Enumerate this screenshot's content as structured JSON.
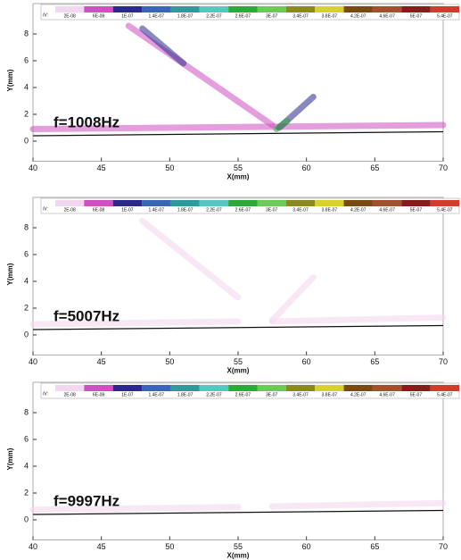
{
  "chart_data": [
    {
      "type": "contour",
      "annotation": "f=1008Hz",
      "xlabel": "X(mm)",
      "ylabel": "Y(mm)",
      "xlim": [
        40,
        70
      ],
      "ylim": [
        -1.5,
        10
      ],
      "xticks": [
        40,
        45,
        50,
        55,
        60,
        65,
        70
      ],
      "yticks": [
        0,
        2,
        4,
        6,
        8
      ],
      "colorbar": {
        "label": "/V:",
        "levels": [
          {
            "value": 2e-08,
            "label": "2E-08"
          },
          {
            "value": 6e-08,
            "label": "6E-08"
          },
          {
            "value": 1e-07,
            "label": "1E-07"
          },
          {
            "value": 1.4e-07,
            "label": "1.4E-07"
          },
          {
            "value": 1.8e-07,
            "label": "1.8E-07"
          },
          {
            "value": 2.2e-07,
            "label": "2.2E-07"
          },
          {
            "value": 2.6e-07,
            "label": "2.6E-07"
          },
          {
            "value": 3e-07,
            "label": "3E-07"
          },
          {
            "value": 3.4e-07,
            "label": "3.4E-07"
          },
          {
            "value": 3.8e-07,
            "label": "3.8E-07"
          },
          {
            "value": 4.2e-07,
            "label": "4.2E-07"
          },
          {
            "value": 4.6e-07,
            "label": "4.6E-07"
          },
          {
            "value": 5e-07,
            "label": "5E-07"
          },
          {
            "value": 5.4e-07,
            "label": "5.4E-07"
          }
        ],
        "colors": [
          "#f3d6ef",
          "#d14fc2",
          "#2b2a8c",
          "#3a66b3",
          "#2a9c9c",
          "#57c7c0",
          "#2fa83a",
          "#6cc95a",
          "#8c8a1e",
          "#d6d22a",
          "#7a4a12",
          "#a0522d",
          "#8b1a1a",
          "#d63a2a"
        ]
      },
      "wall": {
        "x": [
          40,
          70
        ],
        "y": [
          0.4,
          0.7
        ]
      },
      "streaks": [
        {
          "x": [
            40,
            70
          ],
          "y": [
            0.9,
            1.2
          ],
          "level": 6e-08
        },
        {
          "x": [
            47,
            57.5
          ],
          "y": [
            8.6,
            1.2
          ],
          "level": 6e-08
        },
        {
          "x": [
            48,
            51
          ],
          "y": [
            8.4,
            5.8
          ],
          "level": 1e-07
        },
        {
          "x": [
            58,
            60.5
          ],
          "y": [
            1,
            3.3
          ],
          "level": 1e-07
        },
        {
          "x": [
            57.8,
            58.6
          ],
          "y": [
            0.9,
            1.5
          ],
          "level": 2.6e-07
        }
      ]
    },
    {
      "type": "contour",
      "annotation": "f=5007Hz",
      "xlabel": "X(mm)",
      "ylabel": "Y(mm)",
      "xlim": [
        40,
        70
      ],
      "ylim": [
        -1.5,
        10
      ],
      "xticks": [
        40,
        45,
        50,
        55,
        60,
        65,
        70
      ],
      "yticks": [
        0,
        2,
        4,
        6,
        8
      ],
      "colorbar": {
        "label": "/V:",
        "levels": [
          {
            "value": 2e-08,
            "label": "2E-08"
          },
          {
            "value": 6e-08,
            "label": "6E-08"
          },
          {
            "value": 1e-07,
            "label": "1E-07"
          },
          {
            "value": 1.4e-07,
            "label": "1.4E-07"
          },
          {
            "value": 1.8e-07,
            "label": "1.8E-07"
          },
          {
            "value": 2.2e-07,
            "label": "2.2E-07"
          },
          {
            "value": 2.6e-07,
            "label": "2.6E-07"
          },
          {
            "value": 3e-07,
            "label": "3E-07"
          },
          {
            "value": 3.4e-07,
            "label": "3.4E-07"
          },
          {
            "value": 3.8e-07,
            "label": "3.8E-07"
          },
          {
            "value": 4.2e-07,
            "label": "4.2E-07"
          },
          {
            "value": 4.6e-07,
            "label": "4.6E-07"
          },
          {
            "value": 5e-07,
            "label": "5E-07"
          },
          {
            "value": 5.4e-07,
            "label": "5.4E-07"
          }
        ],
        "colors": [
          "#f3d6ef",
          "#d14fc2",
          "#2b2a8c",
          "#3a66b3",
          "#2a9c9c",
          "#57c7c0",
          "#2fa83a",
          "#6cc95a",
          "#8c8a1e",
          "#d6d22a",
          "#7a4a12",
          "#a0522d",
          "#8b1a1a",
          "#d63a2a"
        ]
      },
      "wall": {
        "x": [
          40,
          70
        ],
        "y": [
          0.4,
          0.7
        ]
      },
      "streaks": [
        {
          "x": [
            40,
            55
          ],
          "y": [
            0.8,
            1
          ],
          "level": 2e-08
        },
        {
          "x": [
            57.5,
            70
          ],
          "y": [
            1,
            1.3
          ],
          "level": 2e-08
        },
        {
          "x": [
            48,
            55
          ],
          "y": [
            8.5,
            2.8
          ],
          "level": 2e-08
        },
        {
          "x": [
            57.5,
            60.5
          ],
          "y": [
            1.1,
            4.3
          ],
          "level": 2e-08
        }
      ]
    },
    {
      "type": "contour",
      "annotation": "f=9997Hz",
      "xlabel": "X(mm)",
      "ylabel": "Y(mm)",
      "xlim": [
        40,
        70
      ],
      "ylim": [
        -1.5,
        10
      ],
      "xticks": [
        40,
        45,
        50,
        55,
        60,
        65,
        70
      ],
      "yticks": [
        0,
        2,
        4,
        6,
        8
      ],
      "colorbar": {
        "label": "/V:",
        "levels": [
          {
            "value": 2e-08,
            "label": "2E-08"
          },
          {
            "value": 6e-08,
            "label": "6E-08"
          },
          {
            "value": 1e-07,
            "label": "1E-07"
          },
          {
            "value": 1.4e-07,
            "label": "1.4E-07"
          },
          {
            "value": 1.8e-07,
            "label": "1.8E-07"
          },
          {
            "value": 2.2e-07,
            "label": "2.2E-07"
          },
          {
            "value": 2.6e-07,
            "label": "2.6E-07"
          },
          {
            "value": 3e-07,
            "label": "3E-07"
          },
          {
            "value": 3.4e-07,
            "label": "3.4E-07"
          },
          {
            "value": 3.8e-07,
            "label": "3.8E-07"
          },
          {
            "value": 4.2e-07,
            "label": "4.2E-07"
          },
          {
            "value": 4.6e-07,
            "label": "4.6E-07"
          },
          {
            "value": 5e-07,
            "label": "5E-07"
          },
          {
            "value": 5.4e-07,
            "label": "5.4E-07"
          }
        ],
        "colors": [
          "#f3d6ef",
          "#d14fc2",
          "#2b2a8c",
          "#3a66b3",
          "#2a9c9c",
          "#57c7c0",
          "#2fa83a",
          "#6cc95a",
          "#8c8a1e",
          "#d6d22a",
          "#7a4a12",
          "#a0522d",
          "#8b1a1a",
          "#d63a2a"
        ]
      },
      "wall": {
        "x": [
          40,
          70
        ],
        "y": [
          0.4,
          0.7
        ]
      },
      "streaks": [
        {
          "x": [
            40,
            55
          ],
          "y": [
            0.75,
            0.95
          ],
          "level": 2e-08
        },
        {
          "x": [
            57.5,
            70
          ],
          "y": [
            1,
            1.25
          ],
          "level": 2e-08
        }
      ]
    }
  ]
}
